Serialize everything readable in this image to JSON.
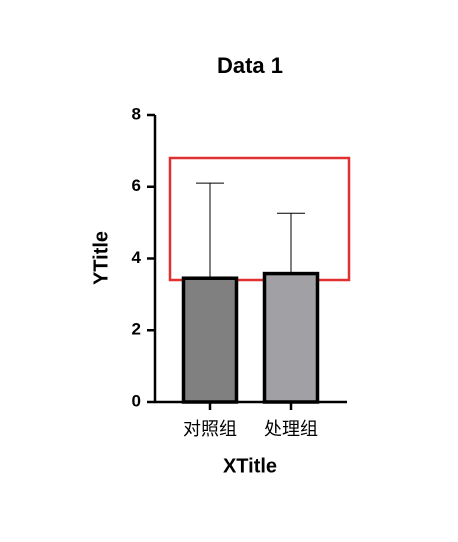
{
  "chart_data": {
    "type": "bar",
    "title": "Data 1",
    "x_label": "XTitle",
    "y_label": "YTitle",
    "categories": [
      "对照组",
      "处理组"
    ],
    "values": [
      3.45,
      3.58
    ],
    "errors": [
      2.65,
      1.68
    ],
    "colors": [
      "#808080",
      "#a0a0a5"
    ],
    "ylim": [
      0,
      8
    ],
    "yticks": [
      0,
      2,
      4,
      6,
      8
    ],
    "grid": false
  }
}
